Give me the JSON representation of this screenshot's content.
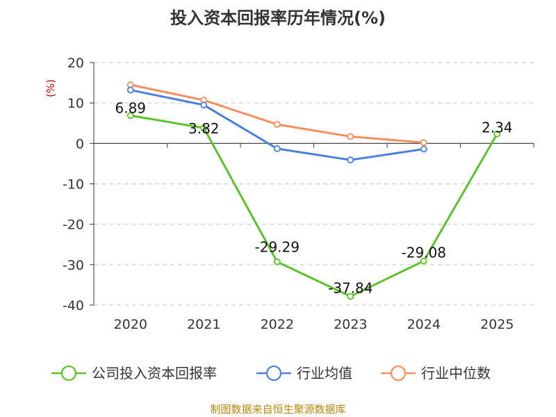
{
  "title": "投入资本回报率历年情况(%)",
  "source": "制图数据来自恒生聚源数据库",
  "colors": {
    "company": "#5cc22a",
    "industry_avg": "#4a7fdc",
    "industry_median": "#f68f5a",
    "grid": "#cccccc",
    "axis": "#333333",
    "unit": "#cc0000"
  },
  "chart_data": {
    "type": "line",
    "title": "投入资本回报率历年情况(%)",
    "ylabel": "(%)",
    "xlabel": "",
    "ylim": [
      -40,
      20
    ],
    "yticks": [
      20,
      10,
      0,
      -10,
      -20,
      -30,
      -40
    ],
    "categories": [
      "2020",
      "2021",
      "2022",
      "2023",
      "2024",
      "2025"
    ],
    "legend_position": "bottom",
    "series": [
      {
        "name": "公司投入资本回报率",
        "color": "#5cc22a",
        "values": [
          6.89,
          3.82,
          -29.29,
          -37.84,
          -29.08,
          2.34
        ],
        "labels": [
          "6.89",
          "3.82",
          "-29.29",
          "-37.84",
          "-29.08",
          "2.34"
        ]
      },
      {
        "name": "行业均值",
        "color": "#4a7fdc",
        "values": [
          13.2,
          9.5,
          -1.3,
          -4.1,
          -1.4,
          null
        ]
      },
      {
        "name": "行业中位数",
        "color": "#f68f5a",
        "values": [
          14.5,
          10.7,
          4.7,
          1.7,
          0.2,
          null
        ]
      }
    ]
  }
}
